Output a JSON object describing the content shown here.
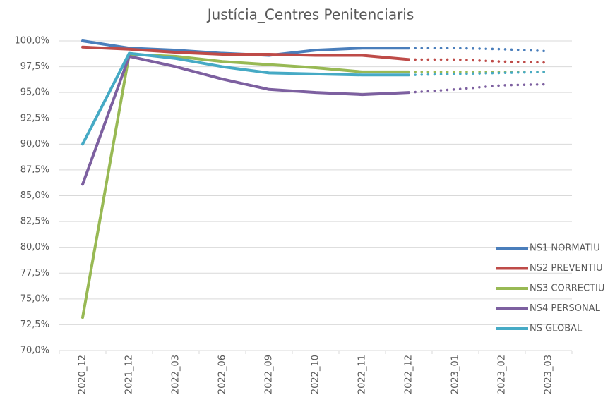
{
  "chart_data": {
    "type": "line",
    "title": "Justícia_Centres Penitenciaris",
    "categories": [
      "2020_12",
      "2021_12",
      "2022_03",
      "2022_06",
      "2022_09",
      "2022_10",
      "2022_11",
      "2022_12",
      "2023_01",
      "2023_02",
      "2023_03"
    ],
    "series": [
      {
        "name": "NS1 NORMATIU",
        "color": "#4a7ebb",
        "values": [
          100.0,
          99.3,
          99.1,
          98.8,
          98.6,
          99.1,
          99.3,
          99.3,
          99.3,
          99.2,
          99.0
        ]
      },
      {
        "name": "NS2 PREVENTIU",
        "color": "#be4b48",
        "values": [
          99.4,
          99.2,
          98.9,
          98.7,
          98.7,
          98.6,
          98.6,
          98.2,
          98.2,
          98.0,
          97.9
        ]
      },
      {
        "name": "NS3 CORRECTIU",
        "color": "#98b954",
        "values": [
          73.2,
          98.7,
          98.5,
          98.0,
          97.7,
          97.4,
          97.0,
          97.0,
          97.0,
          97.0,
          97.0
        ]
      },
      {
        "name": "NS4 PERSONAL",
        "color": "#7d60a0",
        "values": [
          86.1,
          98.5,
          97.5,
          96.3,
          95.3,
          95.0,
          94.8,
          95.0,
          95.3,
          95.7,
          95.8
        ]
      },
      {
        "name": "NS GLOBAL",
        "color": "#46aac5",
        "values": [
          90.0,
          98.8,
          98.3,
          97.5,
          96.9,
          96.8,
          96.7,
          96.7,
          96.8,
          96.9,
          97.0
        ]
      }
    ],
    "dotted_after_index": 7,
    "ylim": [
      70,
      100
    ],
    "yticks": [
      {
        "value": 70,
        "label": "70,0%"
      },
      {
        "value": 72.5,
        "label": "72,5%"
      },
      {
        "value": 75,
        "label": "75,0%"
      },
      {
        "value": 77.5,
        "label": "77,5%"
      },
      {
        "value": 80,
        "label": "80,0%"
      },
      {
        "value": 82.5,
        "label": "82,5%"
      },
      {
        "value": 85,
        "label": "85,0%"
      },
      {
        "value": 87.5,
        "label": "87,5%"
      },
      {
        "value": 90,
        "label": "90,0%"
      },
      {
        "value": 92.5,
        "label": "92,5%"
      },
      {
        "value": 95,
        "label": "95,0%"
      },
      {
        "value": 97.5,
        "label": "97,5%"
      },
      {
        "value": 100,
        "label": "100,0%"
      }
    ],
    "grid": true,
    "legend": "right"
  }
}
